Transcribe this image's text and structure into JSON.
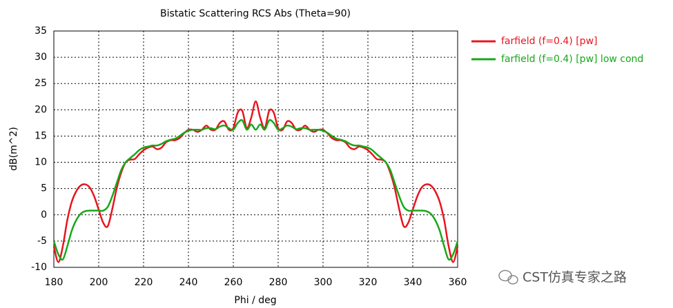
{
  "chart_data": {
    "type": "line",
    "title": "Bistatic Scattering RCS Abs (Theta=90)",
    "xlabel": "Phi / deg",
    "ylabel": "dB(m^2)",
    "x": [
      180,
      182,
      184,
      186,
      188,
      190,
      192,
      194,
      196,
      198,
      200,
      202,
      204,
      206,
      208,
      210,
      212,
      214,
      216,
      218,
      220,
      222,
      224,
      226,
      228,
      230,
      232,
      234,
      236,
      238,
      240,
      242,
      244,
      246,
      248,
      250,
      252,
      254,
      256,
      258,
      260,
      262,
      264,
      266,
      268,
      270,
      272,
      274,
      276,
      278,
      280,
      282,
      284,
      286,
      288,
      290,
      292,
      294,
      296,
      298,
      300,
      302,
      304,
      306,
      308,
      310,
      312,
      314,
      316,
      318,
      320,
      322,
      324,
      326,
      328,
      330,
      332,
      334,
      336,
      338,
      340,
      342,
      344,
      346,
      348,
      350,
      352,
      354,
      356,
      358,
      360
    ],
    "series": [
      {
        "name": "farfield (f=0.4) [pw]",
        "color": "#e8141e",
        "values": [
          -6,
          -9,
          -6,
          -1,
          2.5,
          4.5,
          5.6,
          5.8,
          5.2,
          3.5,
          1,
          -1.5,
          -2.2,
          1,
          5,
          8,
          10,
          10.5,
          10.6,
          11.5,
          12.3,
          12.8,
          13,
          12.5,
          12.8,
          13.8,
          14.2,
          14.2,
          14.6,
          15.5,
          16.2,
          16.2,
          15.8,
          16.2,
          17,
          16.2,
          16.2,
          17.5,
          17.8,
          16.2,
          16.5,
          19.5,
          19.8,
          16.5,
          18.5,
          21.6,
          18.5,
          16.5,
          19.8,
          19.5,
          16.5,
          16.2,
          17.8,
          17.5,
          16.2,
          16.2,
          17,
          16.2,
          15.8,
          16.2,
          16.2,
          15.5,
          14.6,
          14.2,
          14.2,
          13.8,
          12.8,
          12.5,
          13,
          12.8,
          12.3,
          11.5,
          10.6,
          10.5,
          10,
          8,
          5,
          1,
          -2.2,
          -1.5,
          1,
          3.5,
          5.2,
          5.8,
          5.6,
          4.5,
          2.5,
          -1,
          -6,
          -9,
          -6
        ]
      },
      {
        "name": "farfield (f=0.4) [pw] low cond",
        "color": "#16a818",
        "values": [
          -5,
          -7.5,
          -8.5,
          -6,
          -3,
          -1,
          0.2,
          0.7,
          0.8,
          0.8,
          0.8,
          0.8,
          1.5,
          3.5,
          6,
          8.5,
          10,
          10.8,
          11.5,
          12.3,
          12.8,
          13,
          13.2,
          13.2,
          13.5,
          14,
          14.3,
          14.5,
          15,
          15.6,
          16,
          16.2,
          16.2,
          16.2,
          16.5,
          16.5,
          16.3,
          16.8,
          17,
          16.5,
          16.2,
          17.5,
          18,
          16.2,
          17.2,
          16.2,
          17.2,
          16.2,
          18,
          17.5,
          16.2,
          16.5,
          17,
          16.8,
          16.3,
          16.5,
          16.5,
          16.2,
          16.2,
          16.2,
          16,
          15.6,
          15,
          14.5,
          14.3,
          14,
          13.5,
          13.2,
          13.2,
          13,
          12.8,
          12.3,
          11.5,
          10.8,
          10,
          8.5,
          6,
          3.5,
          1.5,
          0.8,
          0.8,
          0.8,
          0.8,
          0.7,
          0.2,
          -1,
          -3,
          -6,
          -8.5,
          -7.5,
          -5
        ]
      }
    ],
    "xlim": [
      180,
      360
    ],
    "xticks": [
      180,
      200,
      220,
      240,
      260,
      280,
      300,
      320,
      340,
      360
    ],
    "ylim": [
      -10,
      35
    ],
    "yticks": [
      -10,
      -5,
      0,
      5,
      10,
      15,
      20,
      25,
      30,
      35
    ],
    "grid": true,
    "legend": "right"
  },
  "watermark": "CST仿真专家之路"
}
